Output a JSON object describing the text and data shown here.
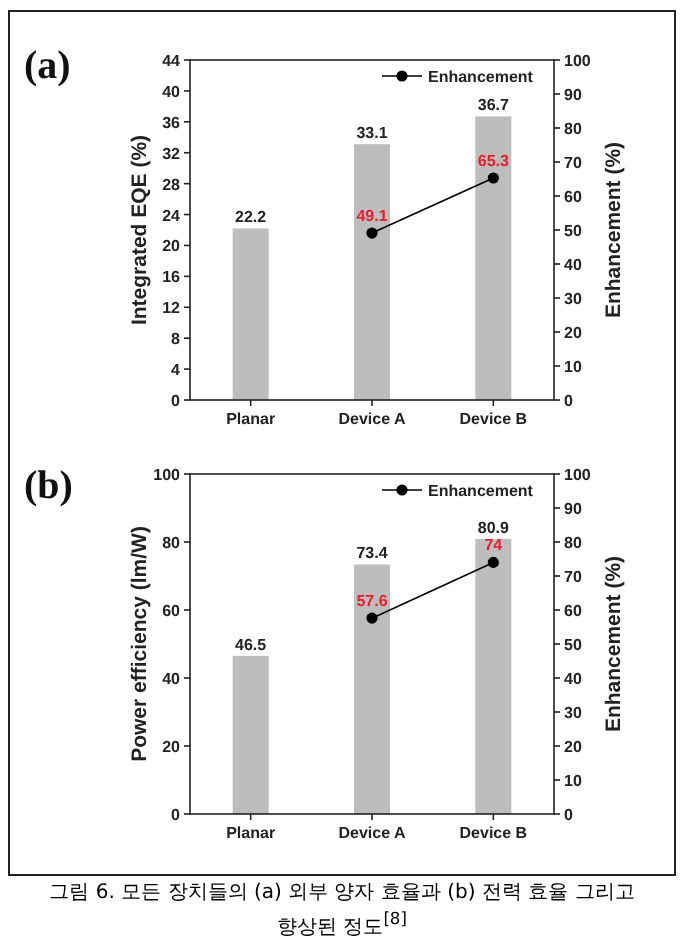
{
  "chart_data": [
    {
      "type": "bar",
      "title": "(a)",
      "categories": [
        "Planar",
        "Device A",
        "Device B"
      ],
      "ylabel": "Integrated EQE (%)",
      "y2label": "Enhancement (%)",
      "ylim": [
        0,
        44
      ],
      "yticks": [
        0,
        4,
        8,
        12,
        16,
        20,
        24,
        28,
        32,
        36,
        40,
        44
      ],
      "y2lim": [
        0,
        100
      ],
      "y2ticks": [
        0,
        10,
        20,
        30,
        40,
        50,
        60,
        70,
        80,
        90,
        100
      ],
      "legend": "top right",
      "data_labels": true,
      "marker": "circle",
      "series": [
        {
          "color": "#bdbdbd",
          "values": [
            22.2,
            33.1,
            36.7
          ]
        },
        {
          "type": "line",
          "name": "Enhancement",
          "axis": "y2",
          "color": "#000000",
          "values": [
            null,
            49.1,
            65.3
          ]
        }
      ]
    },
    {
      "type": "bar",
      "title": "(b)",
      "categories": [
        "Planar",
        "Device A",
        "Device B"
      ],
      "ylabel": "Power efficiency (lm/W)",
      "y2label": "Enhancement (%)",
      "ylim": [
        0,
        100
      ],
      "yticks": [
        0,
        20,
        40,
        60,
        80,
        100
      ],
      "y2lim": [
        0,
        100
      ],
      "y2ticks": [
        0,
        10,
        20,
        30,
        40,
        50,
        60,
        70,
        80,
        90,
        100
      ],
      "legend": "top right",
      "data_labels": true,
      "marker": "circle",
      "annotations": [
        "그림 6. 모든 장치들의 (a) 외부 양자 효율과 (b) 전력 효율 그리고 향상된 정도$^{[8]}$"
      ],
      "series": [
        {
          "color": "#bdbdbd",
          "values": [
            46.5,
            73.4,
            80.9
          ]
        },
        {
          "type": "line",
          "name": "Enhancement",
          "axis": "y2",
          "color": "#000000",
          "values": [
            null,
            57.6,
            74
          ]
        }
      ]
    }
  ]
}
